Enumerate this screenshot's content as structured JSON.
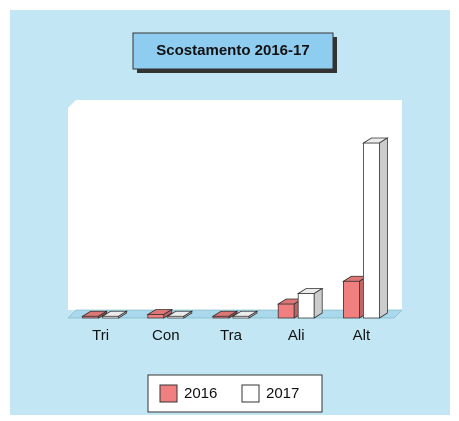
{
  "chart_data": {
    "type": "bar3d",
    "title": "Scostamento 2016-17",
    "categories": [
      "Tri",
      "Con",
      "Tra",
      "Ali",
      "Alt"
    ],
    "series": [
      {
        "name": "2016",
        "color": "#f08080",
        "values": [
          1,
          2,
          1,
          8,
          21
        ]
      },
      {
        "name": "2017",
        "color": "#ffffff",
        "values": [
          1,
          1,
          1,
          14,
          100
        ]
      }
    ],
    "legend": "bottom"
  }
}
